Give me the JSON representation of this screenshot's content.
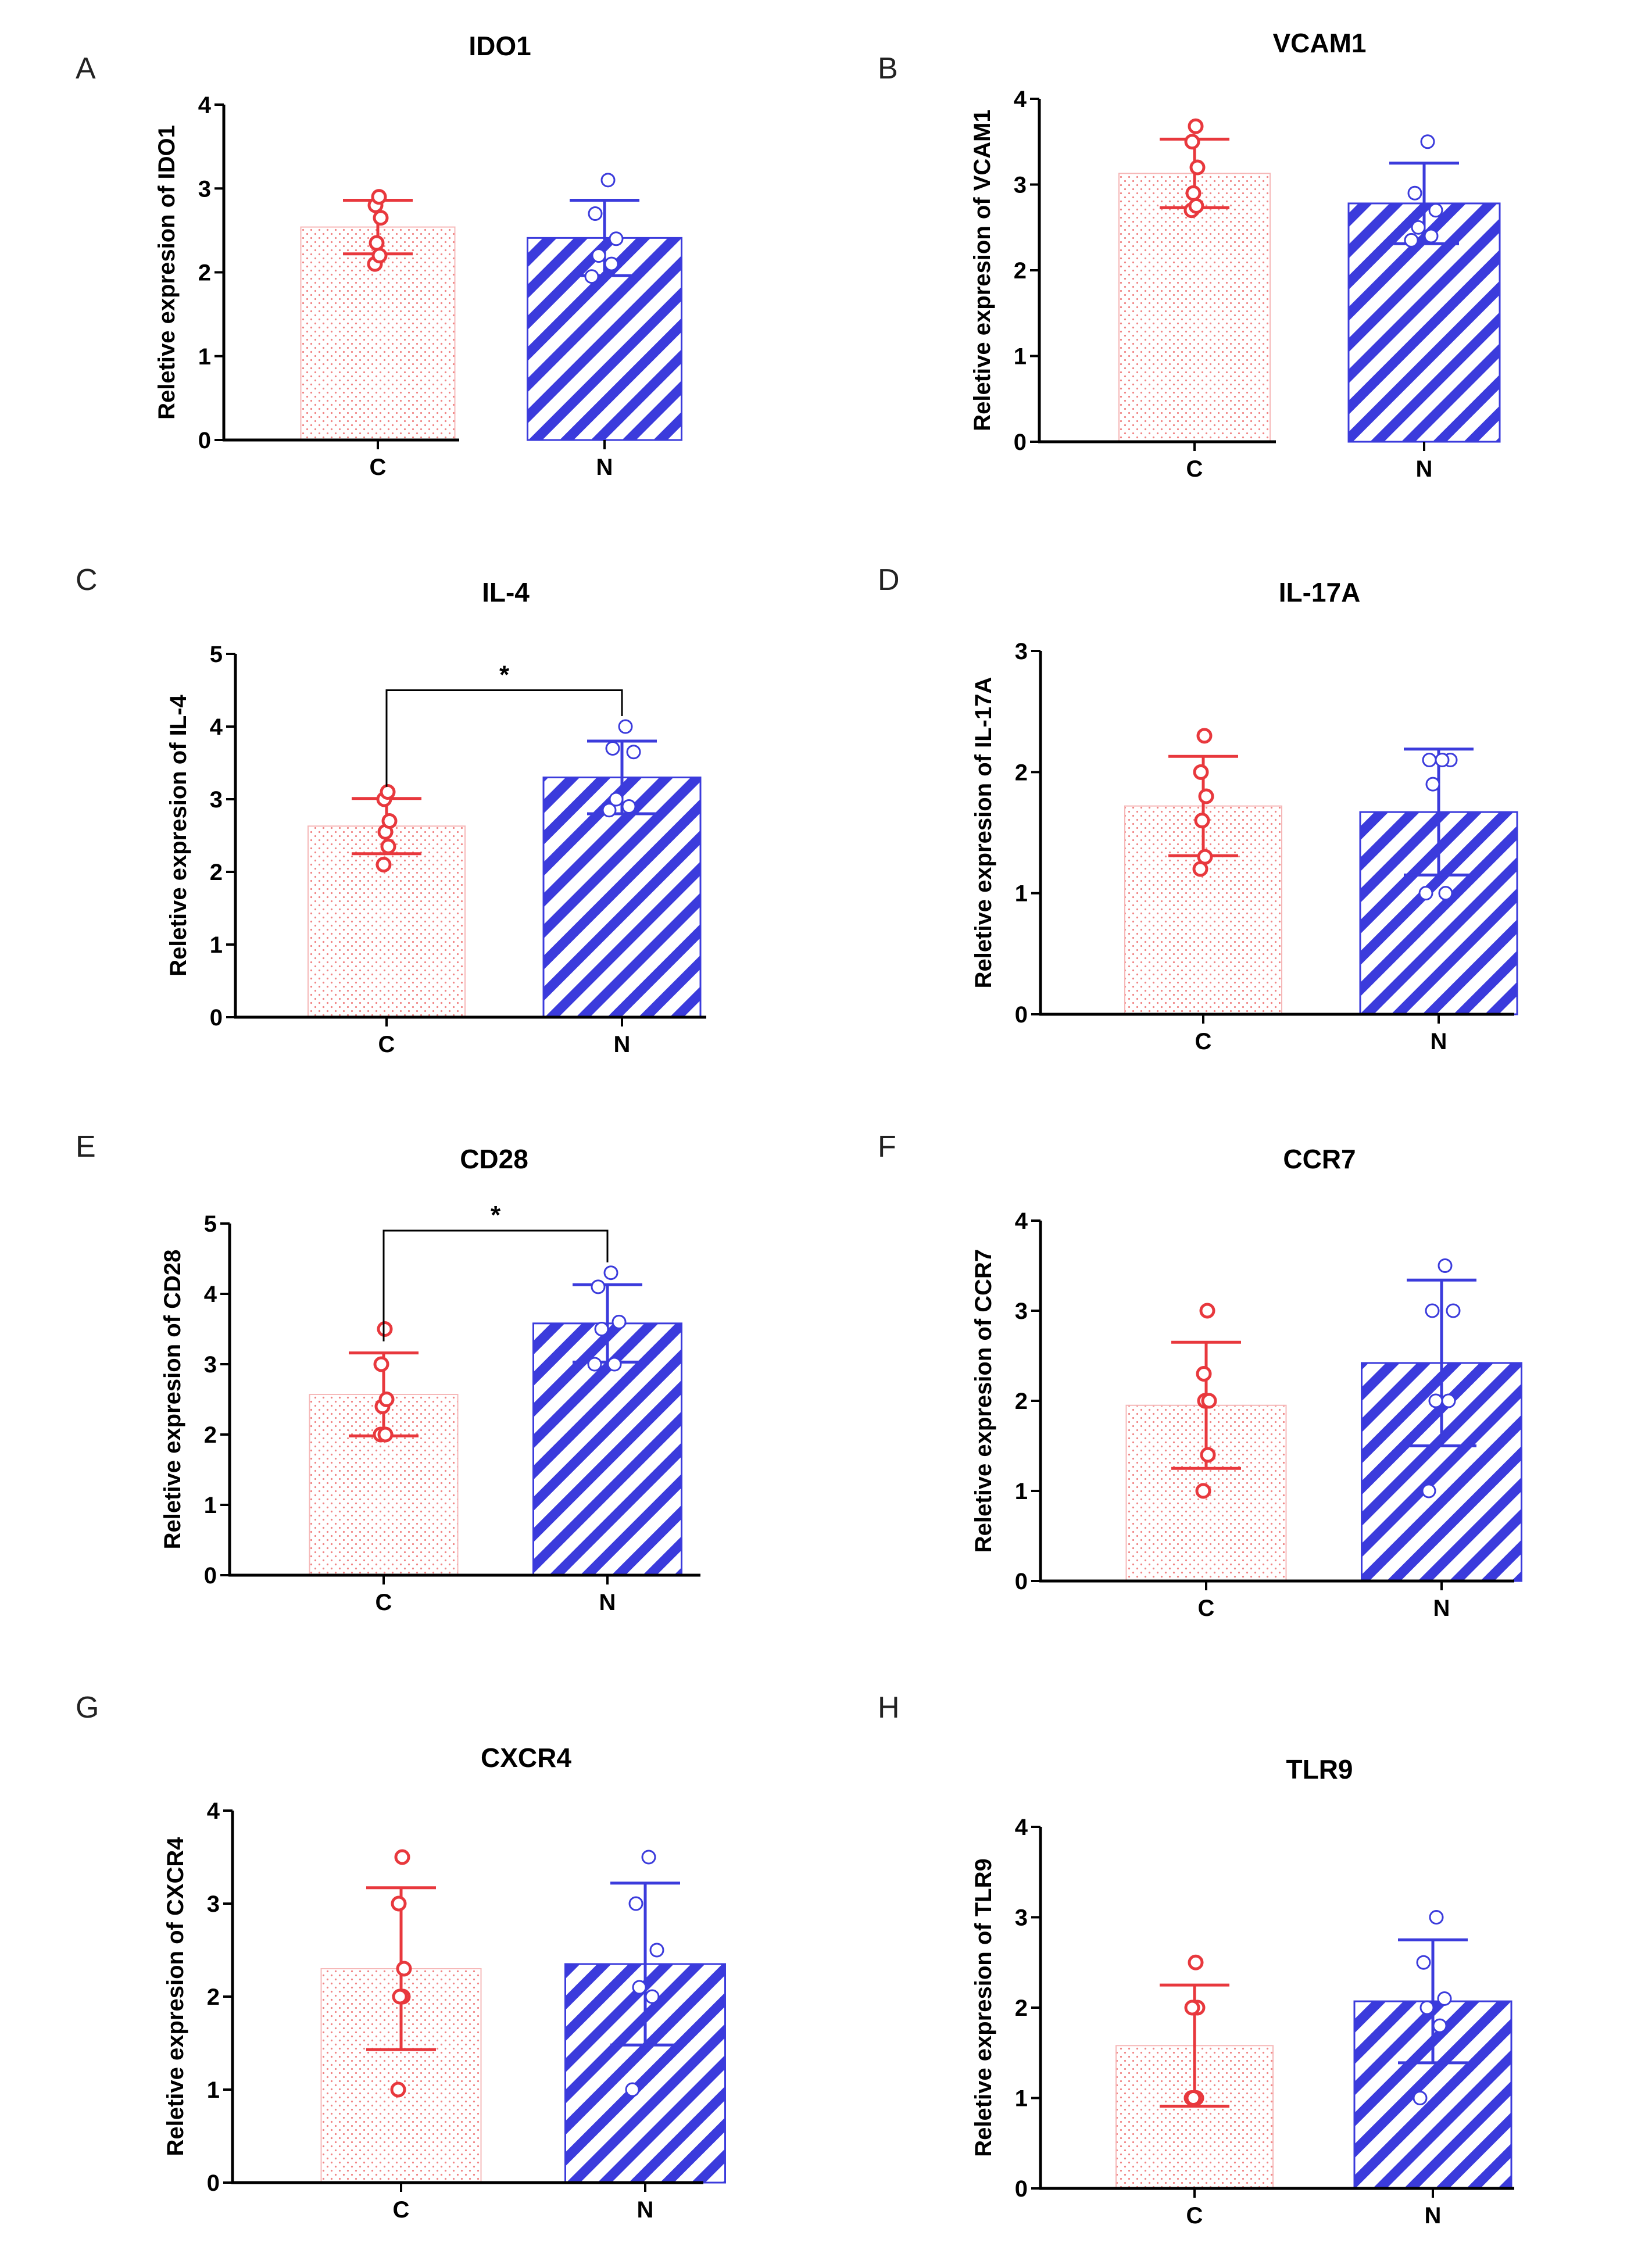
{
  "figure": {
    "colors": {
      "control": "#e8383d",
      "treatment": "#3b3bdc",
      "control_fill": "#f6b8b8"
    }
  },
  "chart_data": [
    {
      "panel": "A",
      "type": "bar",
      "title": "IDO1",
      "ylabel": "Reletive expresion of IDO1",
      "categories": [
        "C",
        "N"
      ],
      "ylim": [
        0,
        4
      ],
      "yticks": [
        0,
        1,
        2,
        3,
        4
      ],
      "values": [
        2.54,
        2.41
      ],
      "errors": [
        0.32,
        0.45
      ],
      "points": [
        [
          2.1,
          2.2,
          2.35,
          2.65,
          2.8,
          2.9
        ],
        [
          1.95,
          2.1,
          2.2,
          2.4,
          2.7,
          3.1
        ]
      ],
      "significance": null
    },
    {
      "panel": "B",
      "type": "bar",
      "title": "VCAM1",
      "ylabel": "Reletive expresion of VCAM1",
      "categories": [
        "C",
        "N"
      ],
      "ylim": [
        0,
        4
      ],
      "yticks": [
        0,
        1,
        2,
        3,
        4
      ],
      "values": [
        3.13,
        2.78
      ],
      "errors": [
        0.4,
        0.47
      ],
      "points": [
        [
          2.7,
          2.75,
          2.9,
          3.2,
          3.5,
          3.68
        ],
        [
          2.35,
          2.4,
          2.5,
          2.7,
          2.9,
          3.5
        ]
      ],
      "significance": null
    },
    {
      "panel": "C",
      "type": "bar",
      "title": "IL-4",
      "ylabel": "Reletive expresion of IL-4",
      "categories": [
        "C",
        "N"
      ],
      "ylim": [
        0,
        5
      ],
      "yticks": [
        0,
        1,
        2,
        3,
        4,
        5
      ],
      "values": [
        2.63,
        3.3
      ],
      "errors": [
        0.38,
        0.5
      ],
      "points": [
        [
          2.1,
          2.35,
          2.55,
          2.7,
          3.0,
          3.1
        ],
        [
          2.85,
          2.9,
          3.0,
          3.65,
          3.7,
          4.0
        ]
      ],
      "significance": {
        "label": "*",
        "y": 4.5
      }
    },
    {
      "panel": "D",
      "type": "bar",
      "title": "IL-17A",
      "ylabel": "Reletive expresion of IL-17A",
      "categories": [
        "C",
        "N"
      ],
      "ylim": [
        0,
        3
      ],
      "yticks": [
        0,
        1,
        2,
        3
      ],
      "values": [
        1.72,
        1.67
      ],
      "errors": [
        0.41,
        0.52
      ],
      "points": [
        [
          1.2,
          1.3,
          1.6,
          1.8,
          2.0,
          2.3
        ],
        [
          1.0,
          1.0,
          1.9,
          2.1,
          2.1,
          2.1
        ]
      ],
      "significance": null
    },
    {
      "panel": "E",
      "type": "bar",
      "title": "CD28",
      "ylabel": "Reletive expresion of CD28",
      "categories": [
        "C",
        "N"
      ],
      "ylim": [
        0,
        5
      ],
      "yticks": [
        0,
        1,
        2,
        3,
        4,
        5
      ],
      "values": [
        2.57,
        3.58
      ],
      "errors": [
        0.59,
        0.55
      ],
      "points": [
        [
          2.0,
          2.0,
          2.4,
          2.5,
          3.0,
          3.5
        ],
        [
          3.0,
          3.0,
          3.5,
          3.6,
          4.1,
          4.3
        ]
      ],
      "significance": {
        "label": "*",
        "y": 4.9
      }
    },
    {
      "panel": "F",
      "type": "bar",
      "title": "CCR7",
      "ylabel": "Reletive expresion of CCR7",
      "categories": [
        "C",
        "N"
      ],
      "ylim": [
        0,
        4
      ],
      "yticks": [
        0,
        1,
        2,
        3,
        4
      ],
      "values": [
        1.95,
        2.42
      ],
      "errors": [
        0.7,
        0.92
      ],
      "points": [
        [
          1.0,
          1.4,
          2.0,
          2.0,
          2.3,
          3.0
        ],
        [
          1.0,
          2.0,
          2.0,
          3.0,
          3.0,
          3.5
        ]
      ],
      "significance": null
    },
    {
      "panel": "G",
      "type": "bar",
      "title": "CXCR4",
      "ylabel": "Reletive expresion of CXCR4",
      "categories": [
        "C",
        "N"
      ],
      "ylim": [
        0,
        4
      ],
      "yticks": [
        0,
        1,
        2,
        3,
        4
      ],
      "values": [
        2.3,
        2.35
      ],
      "errors": [
        0.87,
        0.87
      ],
      "points": [
        [
          1.0,
          2.0,
          2.0,
          2.3,
          3.0,
          3.5
        ],
        [
          1.0,
          2.0,
          2.1,
          2.5,
          3.0,
          3.5
        ]
      ],
      "significance": null
    },
    {
      "panel": "H",
      "type": "bar",
      "title": "TLR9",
      "ylabel": "Reletive expresion of TLR9",
      "categories": [
        "C",
        "N"
      ],
      "ylim": [
        0,
        4
      ],
      "yticks": [
        0,
        1,
        2,
        3,
        4
      ],
      "values": [
        1.58,
        2.07
      ],
      "errors": [
        0.67,
        0.68
      ],
      "points": [
        [
          1.0,
          1.0,
          1.0,
          2.0,
          2.0,
          2.5
        ],
        [
          1.0,
          1.8,
          2.0,
          2.1,
          2.5,
          3.0
        ]
      ],
      "significance": null
    }
  ]
}
